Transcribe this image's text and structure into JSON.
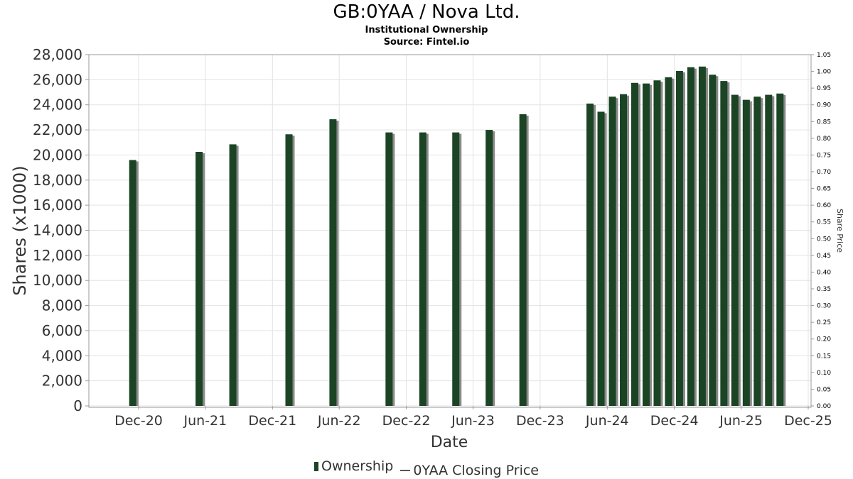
{
  "chart_data": {
    "type": "bar",
    "title": "GB:0YAA / Nova Ltd.",
    "subtitle": "Institutional Ownership",
    "source": "Source: Fintel.io",
    "xlabel": "Date",
    "ylabel": "Shares (x1000)",
    "y2label": "Share Price",
    "ylim": [
      0,
      28000
    ],
    "y2lim": [
      0,
      1.05
    ],
    "grid": true,
    "legend_position": "bottom",
    "x_ticks": [
      "Dec-20",
      "Jun-21",
      "Dec-21",
      "Jun-22",
      "Dec-22",
      "Jun-23",
      "Dec-23",
      "Jun-24",
      "Dec-24",
      "Jun-25",
      "Dec-25"
    ],
    "y_ticks": [
      "0",
      "2,000",
      "4,000",
      "6,000",
      "8,000",
      "10,000",
      "12,000",
      "14,000",
      "16,000",
      "18,000",
      "20,000",
      "22,000",
      "24,000",
      "26,000",
      "28,000"
    ],
    "y2_ticks": [
      "0.00",
      "0.05",
      "0.10",
      "0.15",
      "0.20",
      "0.25",
      "0.30",
      "0.35",
      "0.40",
      "0.45",
      "0.50",
      "0.55",
      "0.60",
      "0.65",
      "0.70",
      "0.75",
      "0.80",
      "0.85",
      "0.90",
      "0.95",
      "1.00",
      "1.05"
    ],
    "series": [
      {
        "name": "Ownership",
        "color": "#1b4424",
        "x": [
          "2020-11-15",
          "2021-05-15",
          "2021-08-15",
          "2022-01-15",
          "2022-05-15",
          "2022-10-15",
          "2023-01-15",
          "2023-04-15",
          "2023-07-15",
          "2023-10-15",
          "2024-04-15",
          "2024-05-15",
          "2024-06-15",
          "2024-07-15",
          "2024-08-15",
          "2024-09-15",
          "2024-10-15",
          "2024-11-15",
          "2024-12-15",
          "2025-01-15",
          "2025-02-15",
          "2025-03-15",
          "2025-04-15",
          "2025-05-15",
          "2025-06-15",
          "2025-07-15",
          "2025-08-15",
          "2025-09-15"
        ],
        "values": [
          19600,
          20250,
          20850,
          21650,
          22850,
          21800,
          21800,
          21800,
          22000,
          23250,
          24100,
          23450,
          24650,
          24850,
          25750,
          25700,
          25950,
          26200,
          26700,
          27000,
          27050,
          26400,
          25900,
          24800,
          24400,
          24650,
          24800,
          24900
        ]
      },
      {
        "name": "0YAA Closing Price",
        "color": "#555555",
        "values": []
      }
    ]
  }
}
